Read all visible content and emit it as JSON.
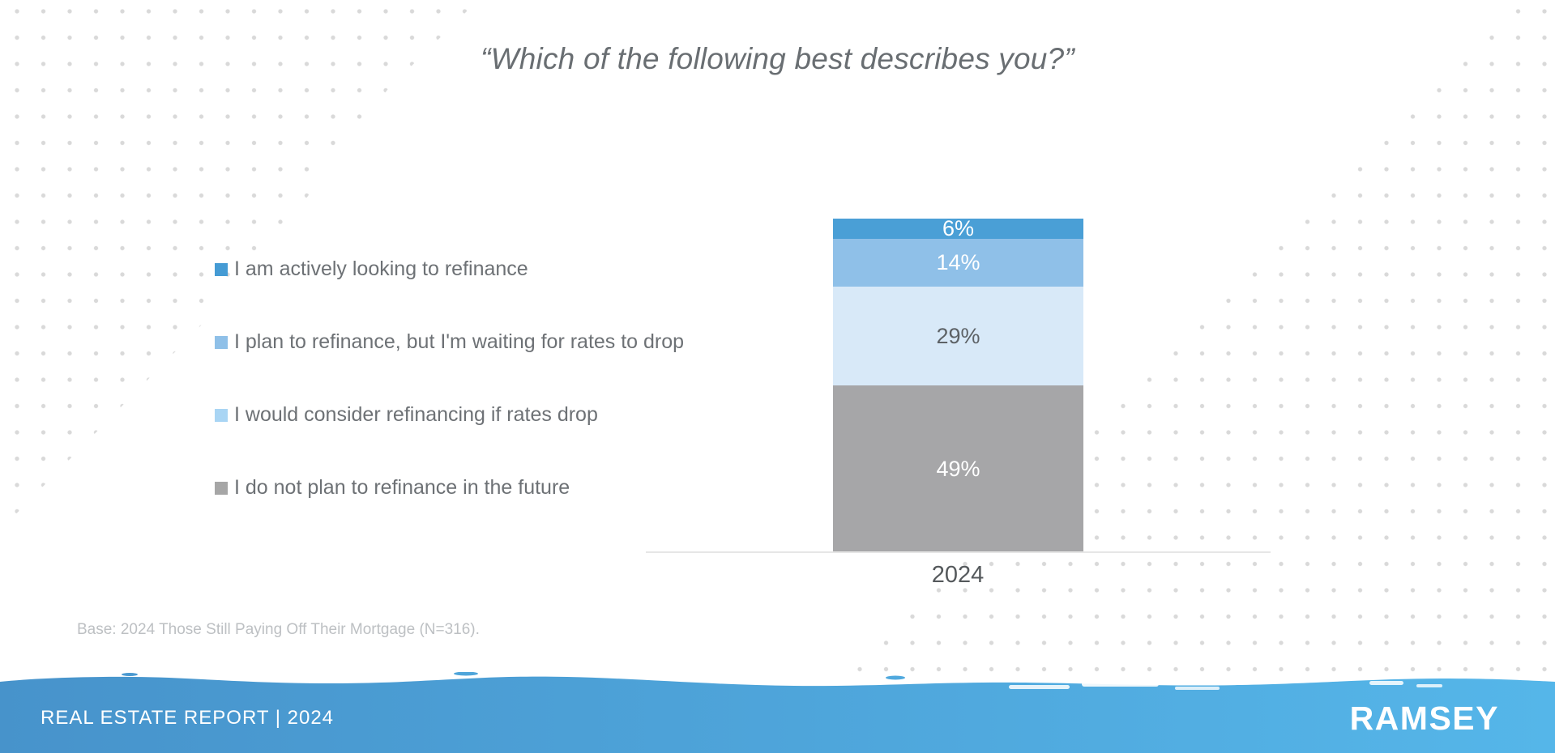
{
  "title": "“Which of the following best describes you?”",
  "chart_data": {
    "type": "bar",
    "stacked": true,
    "categories": [
      "2024"
    ],
    "series": [
      {
        "name": "I am actively looking to refinance",
        "values": [
          6
        ],
        "value_label": "6%",
        "color": "#4a9fd6",
        "legend_color": "#459bd4",
        "label_color": "#ffffff"
      },
      {
        "name": "I plan to refinance, but I'm waiting for rates to drop",
        "values": [
          14
        ],
        "value_label": "14%",
        "color": "#8fc0e8",
        "legend_color": "#8fc0e8",
        "label_color": "#ffffff"
      },
      {
        "name": "I would consider refinancing if rates drop",
        "values": [
          29
        ],
        "value_label": "29%",
        "color": "#d8e9f8",
        "legend_color": "#a9d5f4",
        "label_color": "#5d6266"
      },
      {
        "name": "I do not plan to refinance in the future",
        "values": [
          49
        ],
        "value_label": "49%",
        "color": "#a6a6a8",
        "legend_color": "#a6a6a6",
        "label_color": "#ffffff"
      }
    ],
    "title": "“Which of the following best describes you?”",
    "xlabel": "",
    "ylabel": "",
    "ylim": [
      0,
      100
    ],
    "grid": false,
    "legend_position": "left",
    "value_labels": [
      "6%",
      "14%",
      "29%",
      "49%"
    ]
  },
  "axis": {
    "category_label": "2024"
  },
  "base_note": "Base: 2024 Those Still Paying Off Their Mortgage (N=316).",
  "footer": {
    "report_label": "REAL ESTATE REPORT | 2024",
    "brand": "RAMSEY"
  },
  "colors": {
    "title_text": "#696e72",
    "legend_text": "#6d7175",
    "dots": "#d9d9d9",
    "axis_line": "#e6e6e6",
    "category_text": "#55595c",
    "base_note_text": "#bdc0c3",
    "wave_left": "#4793cb",
    "wave_right": "#55b6e9"
  }
}
